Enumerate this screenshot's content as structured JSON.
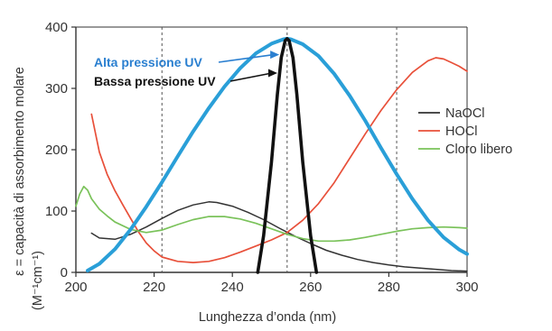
{
  "chart_data": {
    "type": "line",
    "title": "",
    "xlabel": "Lunghezza d’onda (nm)",
    "ylabel_line1": "ε = capacità di assorbimento molare",
    "ylabel_line2": "(M⁻¹cm⁻¹)",
    "xlim": [
      200,
      300
    ],
    "ylim": [
      0,
      400
    ],
    "xticks": [
      200,
      220,
      240,
      260,
      280,
      300
    ],
    "yticks": [
      0,
      100,
      200,
      300,
      400
    ],
    "reference_lines_x": [
      222,
      254,
      282
    ],
    "legend_position": "right",
    "series": [
      {
        "name": "NaOCl",
        "color": "#333333",
        "x": [
          204,
          206,
          210,
          214,
          218,
          222,
          226,
          230,
          234,
          236,
          240,
          244,
          248,
          252,
          256,
          260,
          264,
          268,
          272,
          276,
          280,
          284,
          288,
          292,
          296,
          300
        ],
        "y": [
          64,
          56,
          54,
          62,
          74,
          88,
          101,
          110,
          115,
          114,
          108,
          98,
          86,
          72,
          59,
          47,
          36,
          28,
          21,
          16,
          12,
          9,
          7,
          5,
          3,
          2
        ]
      },
      {
        "name": "HOCl",
        "color": "#e8503a",
        "x": [
          204,
          206,
          208,
          210,
          212,
          214,
          216,
          218,
          220,
          222,
          226,
          230,
          234,
          238,
          242,
          246,
          250,
          254,
          258,
          262,
          266,
          270,
          274,
          278,
          282,
          286,
          290,
          292,
          294,
          296,
          298,
          300
        ],
        "y": [
          258,
          196,
          160,
          133,
          110,
          88,
          66,
          48,
          35,
          25,
          18,
          16,
          18,
          24,
          33,
          43,
          53,
          65,
          85,
          112,
          146,
          186,
          226,
          264,
          298,
          326,
          345,
          350,
          348,
          342,
          336,
          328
        ]
      },
      {
        "name": "Cloro libero",
        "color": "#7ac25a",
        "x": [
          200,
          201,
          202,
          203,
          204,
          206,
          208,
          210,
          214,
          218,
          222,
          226,
          230,
          234,
          238,
          242,
          246,
          250,
          254,
          258,
          262,
          266,
          270,
          274,
          278,
          282,
          286,
          290,
          294,
          298,
          300
        ],
        "y": [
          108,
          128,
          140,
          134,
          120,
          103,
          92,
          82,
          70,
          65,
          69,
          78,
          86,
          91,
          91,
          87,
          80,
          71,
          62,
          55,
          51,
          51,
          53,
          57,
          62,
          67,
          71,
          73,
          74,
          73,
          72
        ]
      },
      {
        "name": "Alta pressione UV",
        "color": "#2a9fd8",
        "x": [
          203,
          206,
          210,
          214,
          218,
          222,
          226,
          230,
          234,
          238,
          242,
          246,
          250,
          253,
          254,
          255,
          258,
          262,
          266,
          270,
          274,
          278,
          282,
          286,
          290,
          294,
          298,
          300
        ],
        "y": [
          3,
          14,
          38,
          70,
          107,
          147,
          189,
          230,
          268,
          303,
          333,
          357,
          373,
          380,
          381,
          380,
          372,
          353,
          324,
          288,
          247,
          203,
          160,
          120,
          85,
          57,
          37,
          30
        ]
      },
      {
        "name": "Bassa pressione UV",
        "color": "#111111",
        "x": [
          246.5,
          248,
          250,
          251.5,
          252.5,
          253.5,
          254,
          254.5,
          255.5,
          256.5,
          258,
          260,
          261.5
        ],
        "y": [
          0,
          60,
          180,
          290,
          350,
          378,
          381,
          378,
          350,
          290,
          180,
          60,
          0
        ]
      }
    ],
    "annotations": [
      {
        "text": "Alta pressione UV",
        "color": "#2a7fd0",
        "arrow_to": [
          252,
          355
        ]
      },
      {
        "text": "Bassa pressione UV",
        "color": "#111111",
        "arrow_to": [
          251.5,
          325
        ]
      }
    ]
  }
}
